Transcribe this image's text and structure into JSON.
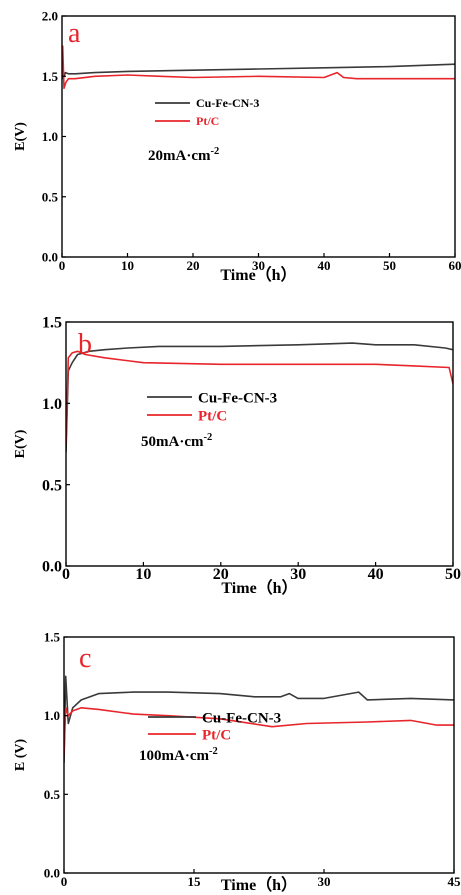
{
  "colors": {
    "cu": "#3a3a3a",
    "pt": "#e8252a",
    "axis": "#000000"
  },
  "chart_data": [
    {
      "type": "line",
      "panel_label": "a",
      "annotation_main": "20mA·cm",
      "annotation_exp": "-2",
      "xlabel": "Time（h）",
      "ylabel": "E(V)",
      "xlim": [
        0,
        60
      ],
      "ylim": [
        0,
        2.0
      ],
      "xticks": [
        "0",
        "10",
        "20",
        "30",
        "40",
        "50",
        "60"
      ],
      "xtick_values": [
        0,
        10,
        20,
        30,
        40,
        50,
        60
      ],
      "yticks": [
        "0.0",
        "0.5",
        "1.0",
        "1.5",
        "2.0"
      ],
      "ytick_values": [
        0,
        0.5,
        1.0,
        1.5,
        2.0
      ],
      "series": [
        {
          "name": "Cu-Fe-CN-3",
          "color": "#3a3a3a",
          "x": [
            0,
            0.2,
            0.5,
            1,
            2,
            5,
            10,
            20,
            30,
            40,
            50,
            60
          ],
          "y": [
            1.58,
            1.48,
            1.53,
            1.52,
            1.52,
            1.53,
            1.54,
            1.55,
            1.56,
            1.57,
            1.58,
            1.6
          ]
        },
        {
          "name": "Pt/C",
          "color": "#e8252a",
          "x": [
            0,
            0.1,
            0.3,
            0.6,
            1,
            2,
            5,
            10,
            15,
            20,
            30,
            40,
            42,
            43,
            45,
            50,
            60
          ],
          "y": [
            1.5,
            1.75,
            1.4,
            1.45,
            1.48,
            1.48,
            1.5,
            1.51,
            1.5,
            1.49,
            1.5,
            1.49,
            1.53,
            1.49,
            1.48,
            1.48,
            1.48
          ]
        }
      ]
    },
    {
      "type": "line",
      "panel_label": "b",
      "annotation_main": "50mA·cm",
      "annotation_exp": "-2",
      "xlabel": "Time（h）",
      "ylabel": "E(V)",
      "xlim": [
        0,
        50
      ],
      "ylim": [
        0,
        1.5
      ],
      "xticks": [
        "0",
        "10",
        "20",
        "30",
        "40",
        "50"
      ],
      "xtick_values": [
        0,
        10,
        20,
        30,
        40,
        50
      ],
      "yticks": [
        "0.0",
        "0.5",
        "1.0",
        "1.5"
      ],
      "ytick_values": [
        0,
        0.5,
        1.0,
        1.5
      ],
      "series": [
        {
          "name": "Cu-Fe-CN-3",
          "color": "#3a3a3a",
          "x": [
            0,
            0.3,
            0.8,
            1.5,
            3,
            5,
            8,
            12,
            20,
            30,
            37,
            40,
            45,
            49,
            50
          ],
          "y": [
            0.7,
            1.2,
            1.25,
            1.3,
            1.32,
            1.33,
            1.34,
            1.35,
            1.35,
            1.36,
            1.37,
            1.36,
            1.36,
            1.34,
            1.33
          ]
        },
        {
          "name": "Pt/C",
          "color": "#e8252a",
          "x": [
            0,
            0.3,
            0.8,
            1.5,
            2.5,
            5,
            10,
            20,
            30,
            40,
            45,
            49.5,
            50
          ],
          "y": [
            0.75,
            1.28,
            1.31,
            1.32,
            1.3,
            1.28,
            1.25,
            1.24,
            1.24,
            1.24,
            1.23,
            1.22,
            1.12
          ]
        }
      ]
    },
    {
      "type": "line",
      "panel_label": "c",
      "annotation_main": "100mA·cm",
      "annotation_exp": "-2",
      "xlabel": "Time（h）",
      "ylabel": "E (V)",
      "xlim": [
        0,
        45
      ],
      "ylim": [
        0,
        1.5
      ],
      "xticks": [
        "0",
        "15",
        "30",
        "45"
      ],
      "xtick_values": [
        0,
        15,
        30,
        45
      ],
      "yticks": [
        "0.0",
        "0.5",
        "1.0",
        "1.5"
      ],
      "ytick_values": [
        0,
        0.5,
        1.0,
        1.5
      ],
      "series": [
        {
          "name": "Cu-Fe-CN-3",
          "color": "#3a3a3a",
          "x": [
            0,
            0.2,
            0.5,
            1,
            2,
            4,
            8,
            12,
            18,
            22,
            25,
            26,
            27,
            30,
            34,
            35,
            40,
            45
          ],
          "y": [
            0.7,
            1.25,
            0.95,
            1.05,
            1.1,
            1.14,
            1.15,
            1.15,
            1.14,
            1.12,
            1.12,
            1.14,
            1.11,
            1.11,
            1.15,
            1.1,
            1.11,
            1.1
          ]
        },
        {
          "name": "Pt/C",
          "color": "#e8252a",
          "x": [
            0,
            0.2,
            0.5,
            1,
            2,
            4,
            8,
            12,
            18,
            24,
            28,
            35,
            40,
            43,
            45
          ],
          "y": [
            0.75,
            1.05,
            1.0,
            1.03,
            1.05,
            1.04,
            1.01,
            1.0,
            0.98,
            0.93,
            0.95,
            0.96,
            0.97,
            0.94,
            0.94
          ]
        }
      ]
    }
  ]
}
